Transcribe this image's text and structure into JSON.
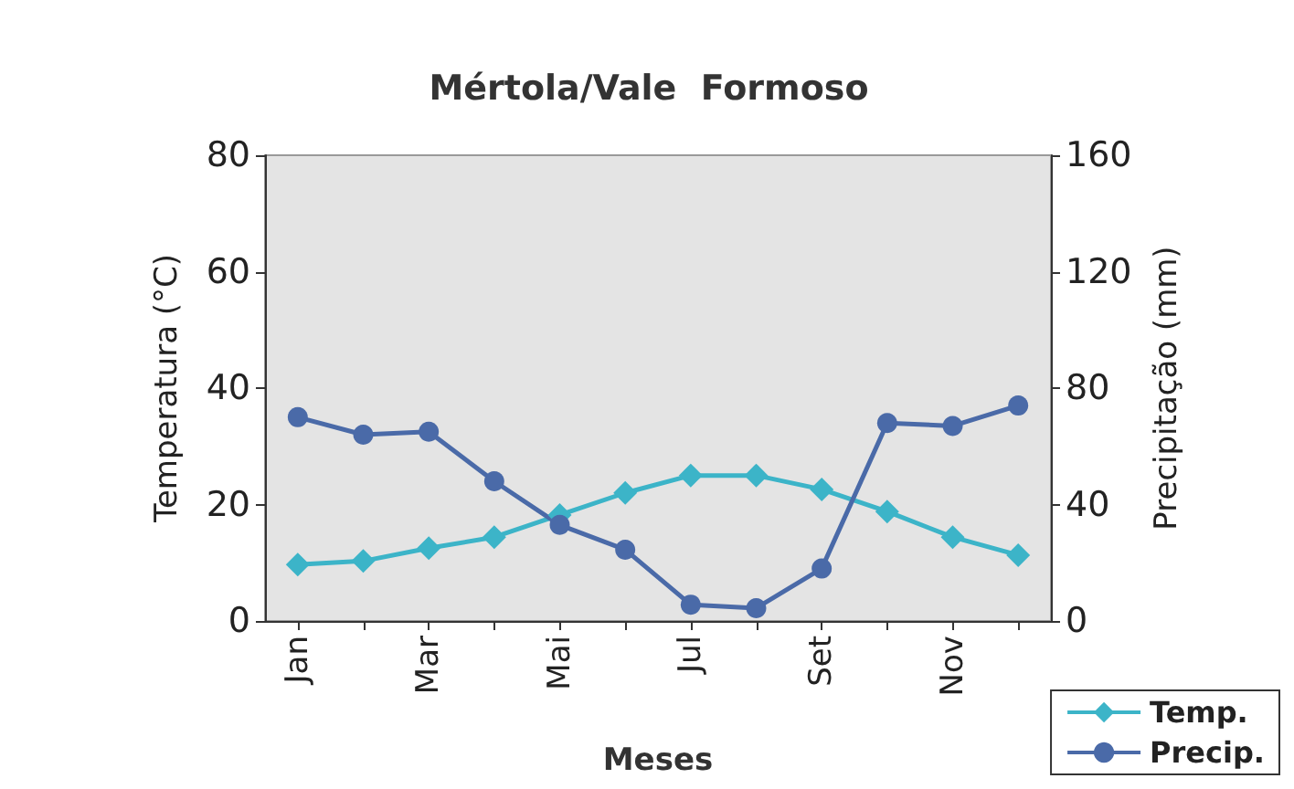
{
  "chart_data": {
    "type": "line",
    "title": "Mértola/Vale  Formoso",
    "xlabel": "Meses",
    "ylabel": "Temperatura (°C)",
    "y2label": "Precipitação (mm)",
    "categories": [
      "Jan",
      null,
      "Mar",
      null,
      "Mai",
      null,
      "Jul",
      null,
      "Set",
      null,
      "Nov",
      null
    ],
    "series": [
      {
        "name": "Temp.",
        "color": "#3cb4c8",
        "marker": "diamond",
        "values": [
          9.7,
          10.3,
          12.5,
          14.4,
          18.2,
          22,
          25,
          25,
          22.6,
          18.8,
          14.4,
          11.3
        ]
      },
      {
        "name": "Precip.",
        "color": "#4a6aa8",
        "marker": "circle",
        "axis": "y2",
        "values": [
          70,
          64,
          65,
          48,
          33,
          24.5,
          5.6,
          4.4,
          18,
          68,
          67,
          74
        ]
      }
    ],
    "ylim": [
      0,
      80
    ],
    "yticks": [
      0,
      20,
      40,
      60,
      80
    ],
    "y2lim": [
      0,
      160
    ],
    "y2ticks": [
      0,
      40,
      80,
      120,
      160
    ],
    "grid": false,
    "legend": "bottom right"
  }
}
